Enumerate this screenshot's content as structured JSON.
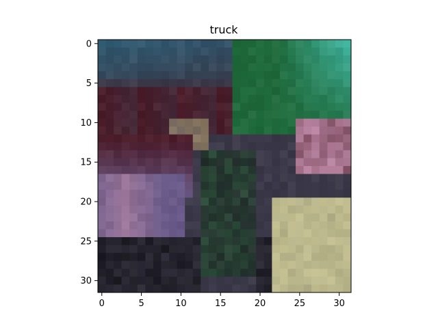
{
  "chart_data": {
    "type": "heatmap",
    "title": "truck",
    "xlabel": "",
    "ylabel": "",
    "grid": false,
    "image_size": [
      32,
      32
    ],
    "x_ticks": [
      0,
      5,
      10,
      15,
      20,
      25,
      30
    ],
    "y_ticks": [
      0,
      5,
      10,
      15,
      20,
      25,
      30
    ],
    "xlim": [
      -0.5,
      31.5
    ],
    "ylim": [
      31.5,
      -0.5
    ],
    "pixel_colors_approx": {
      "background": "#3a3848",
      "top_left_region": "#2f5a72",
      "top_right_foliage": "#1e6a3a",
      "teal_highlight": "#3fb5a0",
      "dark_red_region": "#4a1a28",
      "purple_region": "#6a5a8a",
      "pink_highlight": "#c08aa8",
      "tan_block": "#b8b48a",
      "dark_bottom": "#1a1820"
    }
  }
}
